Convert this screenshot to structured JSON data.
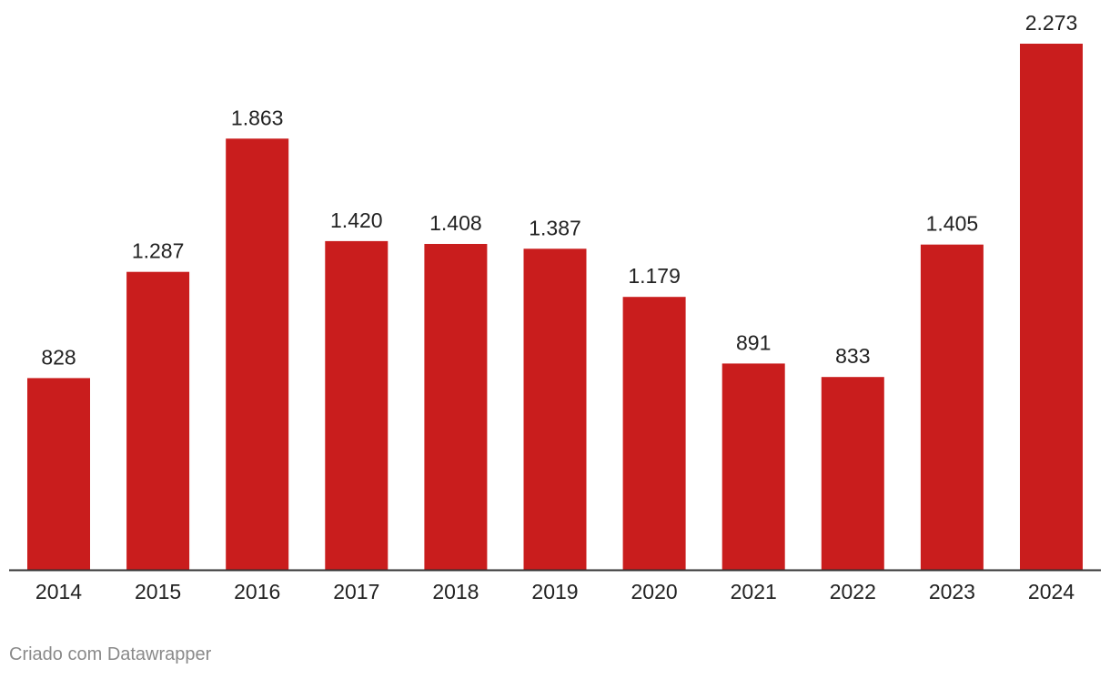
{
  "chart_data": {
    "type": "bar",
    "title": "",
    "xlabel": "",
    "ylabel": "",
    "categories": [
      "2014",
      "2015",
      "2016",
      "2017",
      "2018",
      "2019",
      "2020",
      "2021",
      "2022",
      "2023",
      "2024"
    ],
    "values": [
      828,
      1287,
      1863,
      1420,
      1408,
      1387,
      1179,
      891,
      833,
      1405,
      2273
    ],
    "value_labels": [
      "828",
      "1.287",
      "1.863",
      "1.420",
      "1.408",
      "1.387",
      "1.179",
      "891",
      "833",
      "1.405",
      "2.273"
    ],
    "ylim": [
      0,
      2273
    ],
    "grid": false,
    "legend": "none",
    "bar_color": "#c91d1d",
    "axis_color": "#333333"
  },
  "footer": {
    "credit": "Criado com Datawrapper"
  }
}
